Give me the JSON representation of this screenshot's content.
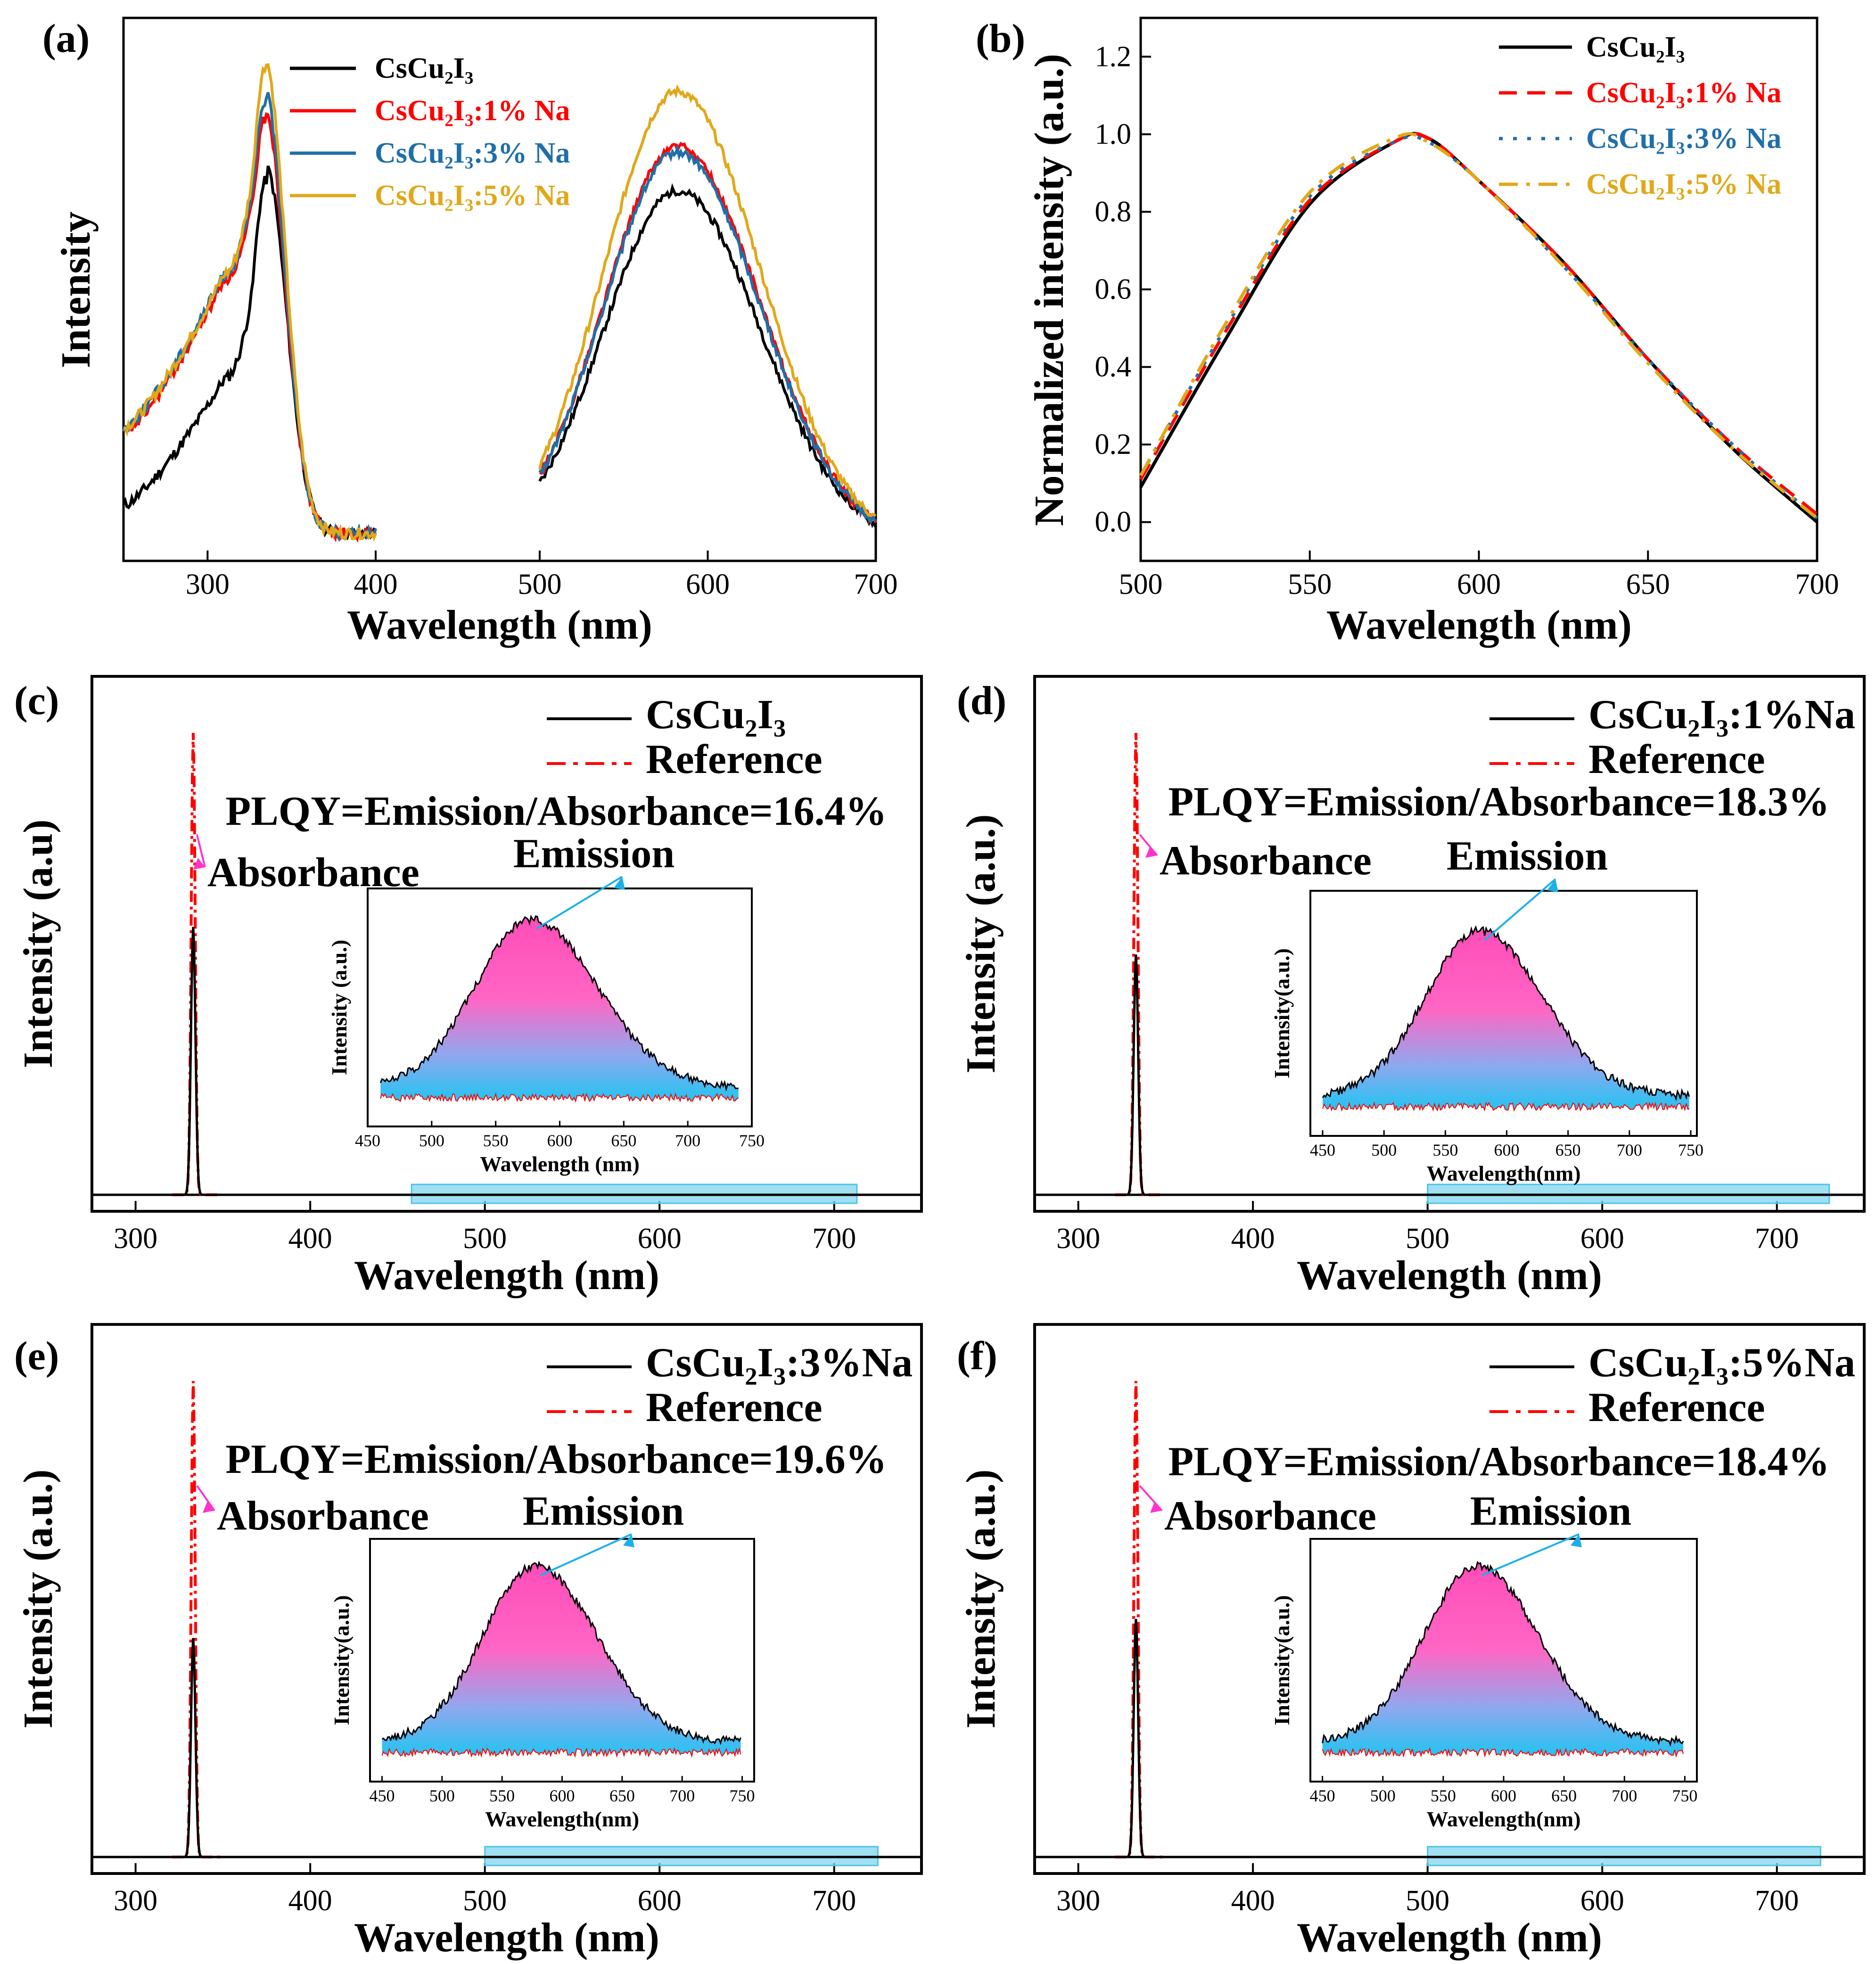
{
  "colors": {
    "black": "#000000",
    "red": "#ff0000",
    "blue": "#1f6fa8",
    "gold": "#e0a81a",
    "reference": "#ff0000",
    "magenta": "#ff33cc",
    "cyan": "#1ab0e8",
    "band": "#7fd6ee",
    "grad_top": "#ff4db8",
    "grad_bottom": "#22c4f2"
  },
  "chart_data": [
    {
      "panel": "(a)",
      "type": "line",
      "xlabel": "Wavelength (nm)",
      "ylabel": "Intensity",
      "xticks": [
        "300",
        "400",
        "500",
        "600",
        "700"
      ],
      "segments": [
        [
          250,
          400
        ],
        [
          500,
          700
        ]
      ],
      "legend": [
        {
          "label": "CsCu₂I₃",
          "color_key": "black"
        },
        {
          "label": "CsCu₂I₃:1% Na",
          "color_key": "red"
        },
        {
          "label": "CsCu₂I₃:3% Na",
          "color_key": "blue"
        },
        {
          "label": "CsCu₂I₃:5% Na",
          "color_key": "gold"
        }
      ],
      "series": [
        {
          "name": "CsCu2I3",
          "color_key": "black",
          "excitation_peak": [
            335,
            0.66
          ],
          "emission_peak": [
            582,
            0.64
          ],
          "exc_start": 0.07,
          "exc_shoulder": 0.3,
          "em_start": 0.05,
          "em_end": 0.1
        },
        {
          "name": "CsCu2I3:1% Na",
          "color_key": "red",
          "excitation_peak": [
            334,
            0.77
          ],
          "emission_peak": [
            582,
            0.72
          ],
          "exc_start": 0.2,
          "exc_shoulder": 0.48,
          "em_start": 0.05,
          "em_end": 0.12
        },
        {
          "name": "CsCu2I3:3% Na",
          "color_key": "blue",
          "excitation_peak": [
            334,
            0.8
          ],
          "emission_peak": [
            582,
            0.71
          ],
          "exc_start": 0.21,
          "exc_shoulder": 0.49,
          "em_start": 0.05,
          "em_end": 0.1
        },
        {
          "name": "CsCu2I3:5% Na",
          "color_key": "gold",
          "excitation_peak": [
            334,
            0.86
          ],
          "emission_peak": [
            582,
            0.82
          ],
          "exc_start": 0.21,
          "exc_shoulder": 0.49,
          "em_start": 0.08,
          "em_end": 0.13
        }
      ]
    },
    {
      "panel": "(b)",
      "type": "line",
      "xlabel": "Wavelength (nm)",
      "ylabel": "Normalized intensity (a.u.)",
      "xlim": [
        500,
        700
      ],
      "ylim": [
        -0.1,
        1.3
      ],
      "xticks": [
        "500",
        "550",
        "600",
        "650",
        "700"
      ],
      "yticks": [
        "0.0",
        "0.2",
        "0.4",
        "0.6",
        "0.8",
        "1.0",
        "1.2"
      ],
      "legend": [
        {
          "label": "CsCu₂I₃",
          "color_key": "black",
          "dash": "solid"
        },
        {
          "label": "CsCu₂I₃:1% Na",
          "color_key": "red",
          "dash": "dash"
        },
        {
          "label": "CsCu₂I₃:3% Na",
          "color_key": "blue",
          "dash": "dot"
        },
        {
          "label": "CsCu₂I₃:5% Na",
          "color_key": "gold",
          "dash": "dashdot"
        }
      ],
      "series": [
        {
          "name": "CsCu2I3",
          "x": [
            500,
            525,
            550,
            575,
            585,
            600,
            625,
            650,
            675,
            700
          ],
          "y": [
            0.09,
            0.47,
            0.82,
            0.98,
            0.99,
            0.88,
            0.67,
            0.42,
            0.19,
            0.0
          ]
        },
        {
          "name": "CsCu2I3:1% Na",
          "x": [
            500,
            525,
            550,
            575,
            585,
            600,
            625,
            650,
            675,
            700
          ],
          "y": [
            0.11,
            0.49,
            0.83,
            0.98,
            0.99,
            0.88,
            0.67,
            0.42,
            0.2,
            0.02
          ]
        },
        {
          "name": "CsCu2I3:3% Na",
          "x": [
            500,
            525,
            550,
            575,
            585,
            600,
            625,
            650,
            675,
            700
          ],
          "y": [
            0.12,
            0.5,
            0.84,
            0.98,
            0.98,
            0.88,
            0.66,
            0.42,
            0.2,
            0.01
          ]
        },
        {
          "name": "CsCu2I3:5% Na",
          "x": [
            500,
            525,
            550,
            575,
            585,
            600,
            625,
            650,
            675,
            700
          ],
          "y": [
            0.12,
            0.51,
            0.85,
            0.99,
            0.98,
            0.88,
            0.66,
            0.41,
            0.19,
            0.01
          ]
        }
      ]
    },
    {
      "panel": "(c)",
      "type": "line",
      "sample": "CsCu₂I₃",
      "reference": "Reference",
      "plqy": "PLQY=Emission/Absorbance=16.4%",
      "absorbance_label": "Absorbance",
      "emission_label": "Emission",
      "xlabel": "Wavelength (nm)",
      "ylabel": "Intensity (a.u)",
      "xlim": [
        275,
        750
      ],
      "xticks": [
        "300",
        "400",
        "500",
        "600",
        "700"
      ],
      "peak_x": 333,
      "sample_peak": 0.58,
      "reference_peak": 1.0,
      "band": [
        458,
        713
      ],
      "inset": {
        "xlim": [
          450,
          750
        ],
        "xticks": [
          "450",
          "500",
          "550",
          "600",
          "650",
          "700",
          "750"
        ],
        "xlabel": "Wavelength (nm)",
        "ylabel": "Intensity (a.u.)",
        "range": [
          460,
          740
        ],
        "peak": [
          578,
          0.92
        ],
        "end": 0.14
      }
    },
    {
      "panel": "(d)",
      "type": "line",
      "sample": "CsCu₂I₃:1%Na",
      "reference": "Reference",
      "plqy": "PLQY=Emission/Absorbance=18.3%",
      "absorbance_label": "Absorbance",
      "emission_label": "Emission",
      "xlabel": "Wavelength (nm)",
      "ylabel": "Intensity (a.u.)",
      "xlim": [
        275,
        750
      ],
      "xticks": [
        "300",
        "400",
        "500",
        "600",
        "700"
      ],
      "peak_x": 333,
      "sample_peak": 0.52,
      "reference_peak": 1.0,
      "band": [
        500,
        730
      ],
      "inset": {
        "xlim": [
          440,
          755
        ],
        "xticks": [
          "450",
          "500",
          "550",
          "600",
          "650",
          "700",
          "750"
        ],
        "xlabel": "Wavelength(nm)",
        "ylabel": "Intensity(a.u.)",
        "range": [
          450,
          750
        ],
        "peak": [
          578,
          0.88
        ],
        "end": 0.12
      }
    },
    {
      "panel": "(e)",
      "type": "line",
      "sample": "CsCu₂I₃:3%Na",
      "reference": "Reference",
      "plqy": "PLQY=Emission/Absorbance=19.6%",
      "absorbance_label": "Absorbance",
      "emission_label": "Emission",
      "xlabel": "Wavelength (nm)",
      "ylabel": "Intensity (a.u.)",
      "xlim": [
        275,
        750
      ],
      "xticks": [
        "300",
        "400",
        "500",
        "600",
        "700"
      ],
      "peak_x": 333,
      "sample_peak": 0.46,
      "reference_peak": 1.0,
      "band": [
        500,
        725
      ],
      "inset": {
        "xlim": [
          440,
          760
        ],
        "xticks": [
          "450",
          "500",
          "550",
          "600",
          "650",
          "700",
          "750"
        ],
        "xlabel": "Wavelength(nm)",
        "ylabel": "Intensity(a.u.)",
        "range": [
          450,
          750
        ],
        "peak": [
          578,
          0.94
        ],
        "end": 0.11
      }
    },
    {
      "panel": "(f)",
      "type": "line",
      "sample": "CsCu₂I₃:5%Na",
      "reference": "Reference",
      "plqy": "PLQY=Emission/Absorbance=18.4%",
      "absorbance_label": "Absorbance",
      "emission_label": "Emission",
      "xlabel": "Wavelength (nm)",
      "ylabel": "Intensity (a.u.)",
      "xlim": [
        275,
        750
      ],
      "xticks": [
        "300",
        "400",
        "500",
        "600",
        "700"
      ],
      "peak_x": 333,
      "sample_peak": 0.5,
      "reference_peak": 1.0,
      "band": [
        500,
        725
      ],
      "inset": {
        "xlim": [
          440,
          760
        ],
        "xticks": [
          "450",
          "500",
          "550",
          "600",
          "650",
          "700",
          "750"
        ],
        "xlabel": "Wavelength(nm)",
        "ylabel": "Intensity(a.u.)",
        "range": [
          450,
          750
        ],
        "peak": [
          578,
          0.94
        ],
        "end": 0.11
      }
    }
  ]
}
